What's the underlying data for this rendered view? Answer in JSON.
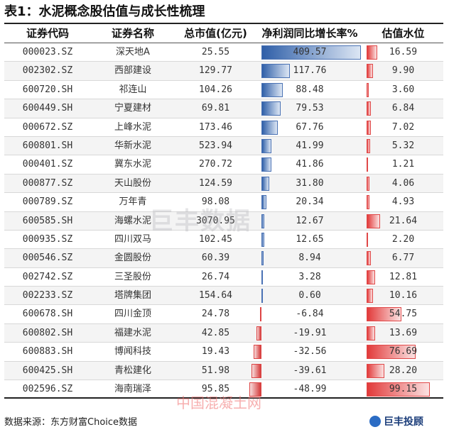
{
  "title": "表1：水泥概念股估值与成长性梳理",
  "headers": [
    "证券代码",
    "证券名称",
    "总市值(亿元)",
    "净利润同比增长率%",
    "估值水位"
  ],
  "rows": [
    {
      "code": "000023.SZ",
      "name": "深天地A",
      "cap": "25.55",
      "growth": "409.57",
      "val": "16.59",
      "g": 409.57,
      "v": 16.59
    },
    {
      "code": "002302.SZ",
      "name": "西部建设",
      "cap": "129.77",
      "growth": "117.76",
      "val": "9.90",
      "g": 117.76,
      "v": 9.9
    },
    {
      "code": "600720.SH",
      "name": "祁连山",
      "cap": "104.26",
      "growth": "88.48",
      "val": "3.60",
      "g": 88.48,
      "v": 3.6
    },
    {
      "code": "600449.SH",
      "name": "宁夏建材",
      "cap": "69.81",
      "growth": "79.53",
      "val": "6.84",
      "g": 79.53,
      "v": 6.84
    },
    {
      "code": "000672.SZ",
      "name": "上峰水泥",
      "cap": "173.46",
      "growth": "67.76",
      "val": "7.02",
      "g": 67.76,
      "v": 7.02
    },
    {
      "code": "600801.SH",
      "name": "华新水泥",
      "cap": "523.94",
      "growth": "41.99",
      "val": "5.32",
      "g": 41.99,
      "v": 5.32
    },
    {
      "code": "000401.SZ",
      "name": "冀东水泥",
      "cap": "270.72",
      "growth": "41.86",
      "val": "1.21",
      "g": 41.86,
      "v": 1.21
    },
    {
      "code": "000877.SZ",
      "name": "天山股份",
      "cap": "124.59",
      "growth": "31.80",
      "val": "4.06",
      "g": 31.8,
      "v": 4.06
    },
    {
      "code": "000789.SZ",
      "name": "万年青",
      "cap": "98.08",
      "growth": "20.34",
      "val": "4.93",
      "g": 20.34,
      "v": 4.93
    },
    {
      "code": "600585.SH",
      "name": "海螺水泥",
      "cap": "3070.95",
      "growth": "12.67",
      "val": "21.64",
      "g": 12.67,
      "v": 21.64
    },
    {
      "code": "000935.SZ",
      "name": "四川双马",
      "cap": "102.45",
      "growth": "12.65",
      "val": "2.20",
      "g": 12.65,
      "v": 2.2
    },
    {
      "code": "000546.SZ",
      "name": "金圆股份",
      "cap": "60.39",
      "growth": "8.94",
      "val": "6.77",
      "g": 8.94,
      "v": 6.77
    },
    {
      "code": "002742.SZ",
      "name": "三圣股份",
      "cap": "26.74",
      "growth": "3.28",
      "val": "12.81",
      "g": 3.28,
      "v": 12.81
    },
    {
      "code": "002233.SZ",
      "name": "塔牌集团",
      "cap": "154.64",
      "growth": "0.60",
      "val": "10.16",
      "g": 0.6,
      "v": 10.16
    },
    {
      "code": "600678.SH",
      "name": "四川金顶",
      "cap": "24.78",
      "growth": "-6.84",
      "val": "54.75",
      "g": -6.84,
      "v": 54.75
    },
    {
      "code": "600802.SH",
      "name": "福建水泥",
      "cap": "42.85",
      "growth": "-19.91",
      "val": "13.69",
      "g": -19.91,
      "v": 13.69
    },
    {
      "code": "600883.SH",
      "name": "博闻科技",
      "cap": "19.43",
      "growth": "-32.56",
      "val": "76.69",
      "g": -32.56,
      "v": 76.69
    },
    {
      "code": "600425.SH",
      "name": "青松建化",
      "cap": "51.98",
      "growth": "-39.61",
      "val": "28.20",
      "g": -39.61,
      "v": 28.2
    },
    {
      "code": "002596.SZ",
      "name": "海南瑞泽",
      "cap": "95.85",
      "growth": "-48.99",
      "val": "99.15",
      "g": -48.99,
      "v": 99.15
    }
  ],
  "footer": "数据来源：东方财富Choice数据",
  "logo": "巨丰投顾",
  "watermark": "巨丰数据",
  "watermark2": "中国混凝土网",
  "colors": {
    "pos_bar": "#2f5fa8",
    "neg_bar": "#d43a3a",
    "val_bar": "#e23a3a"
  }
}
